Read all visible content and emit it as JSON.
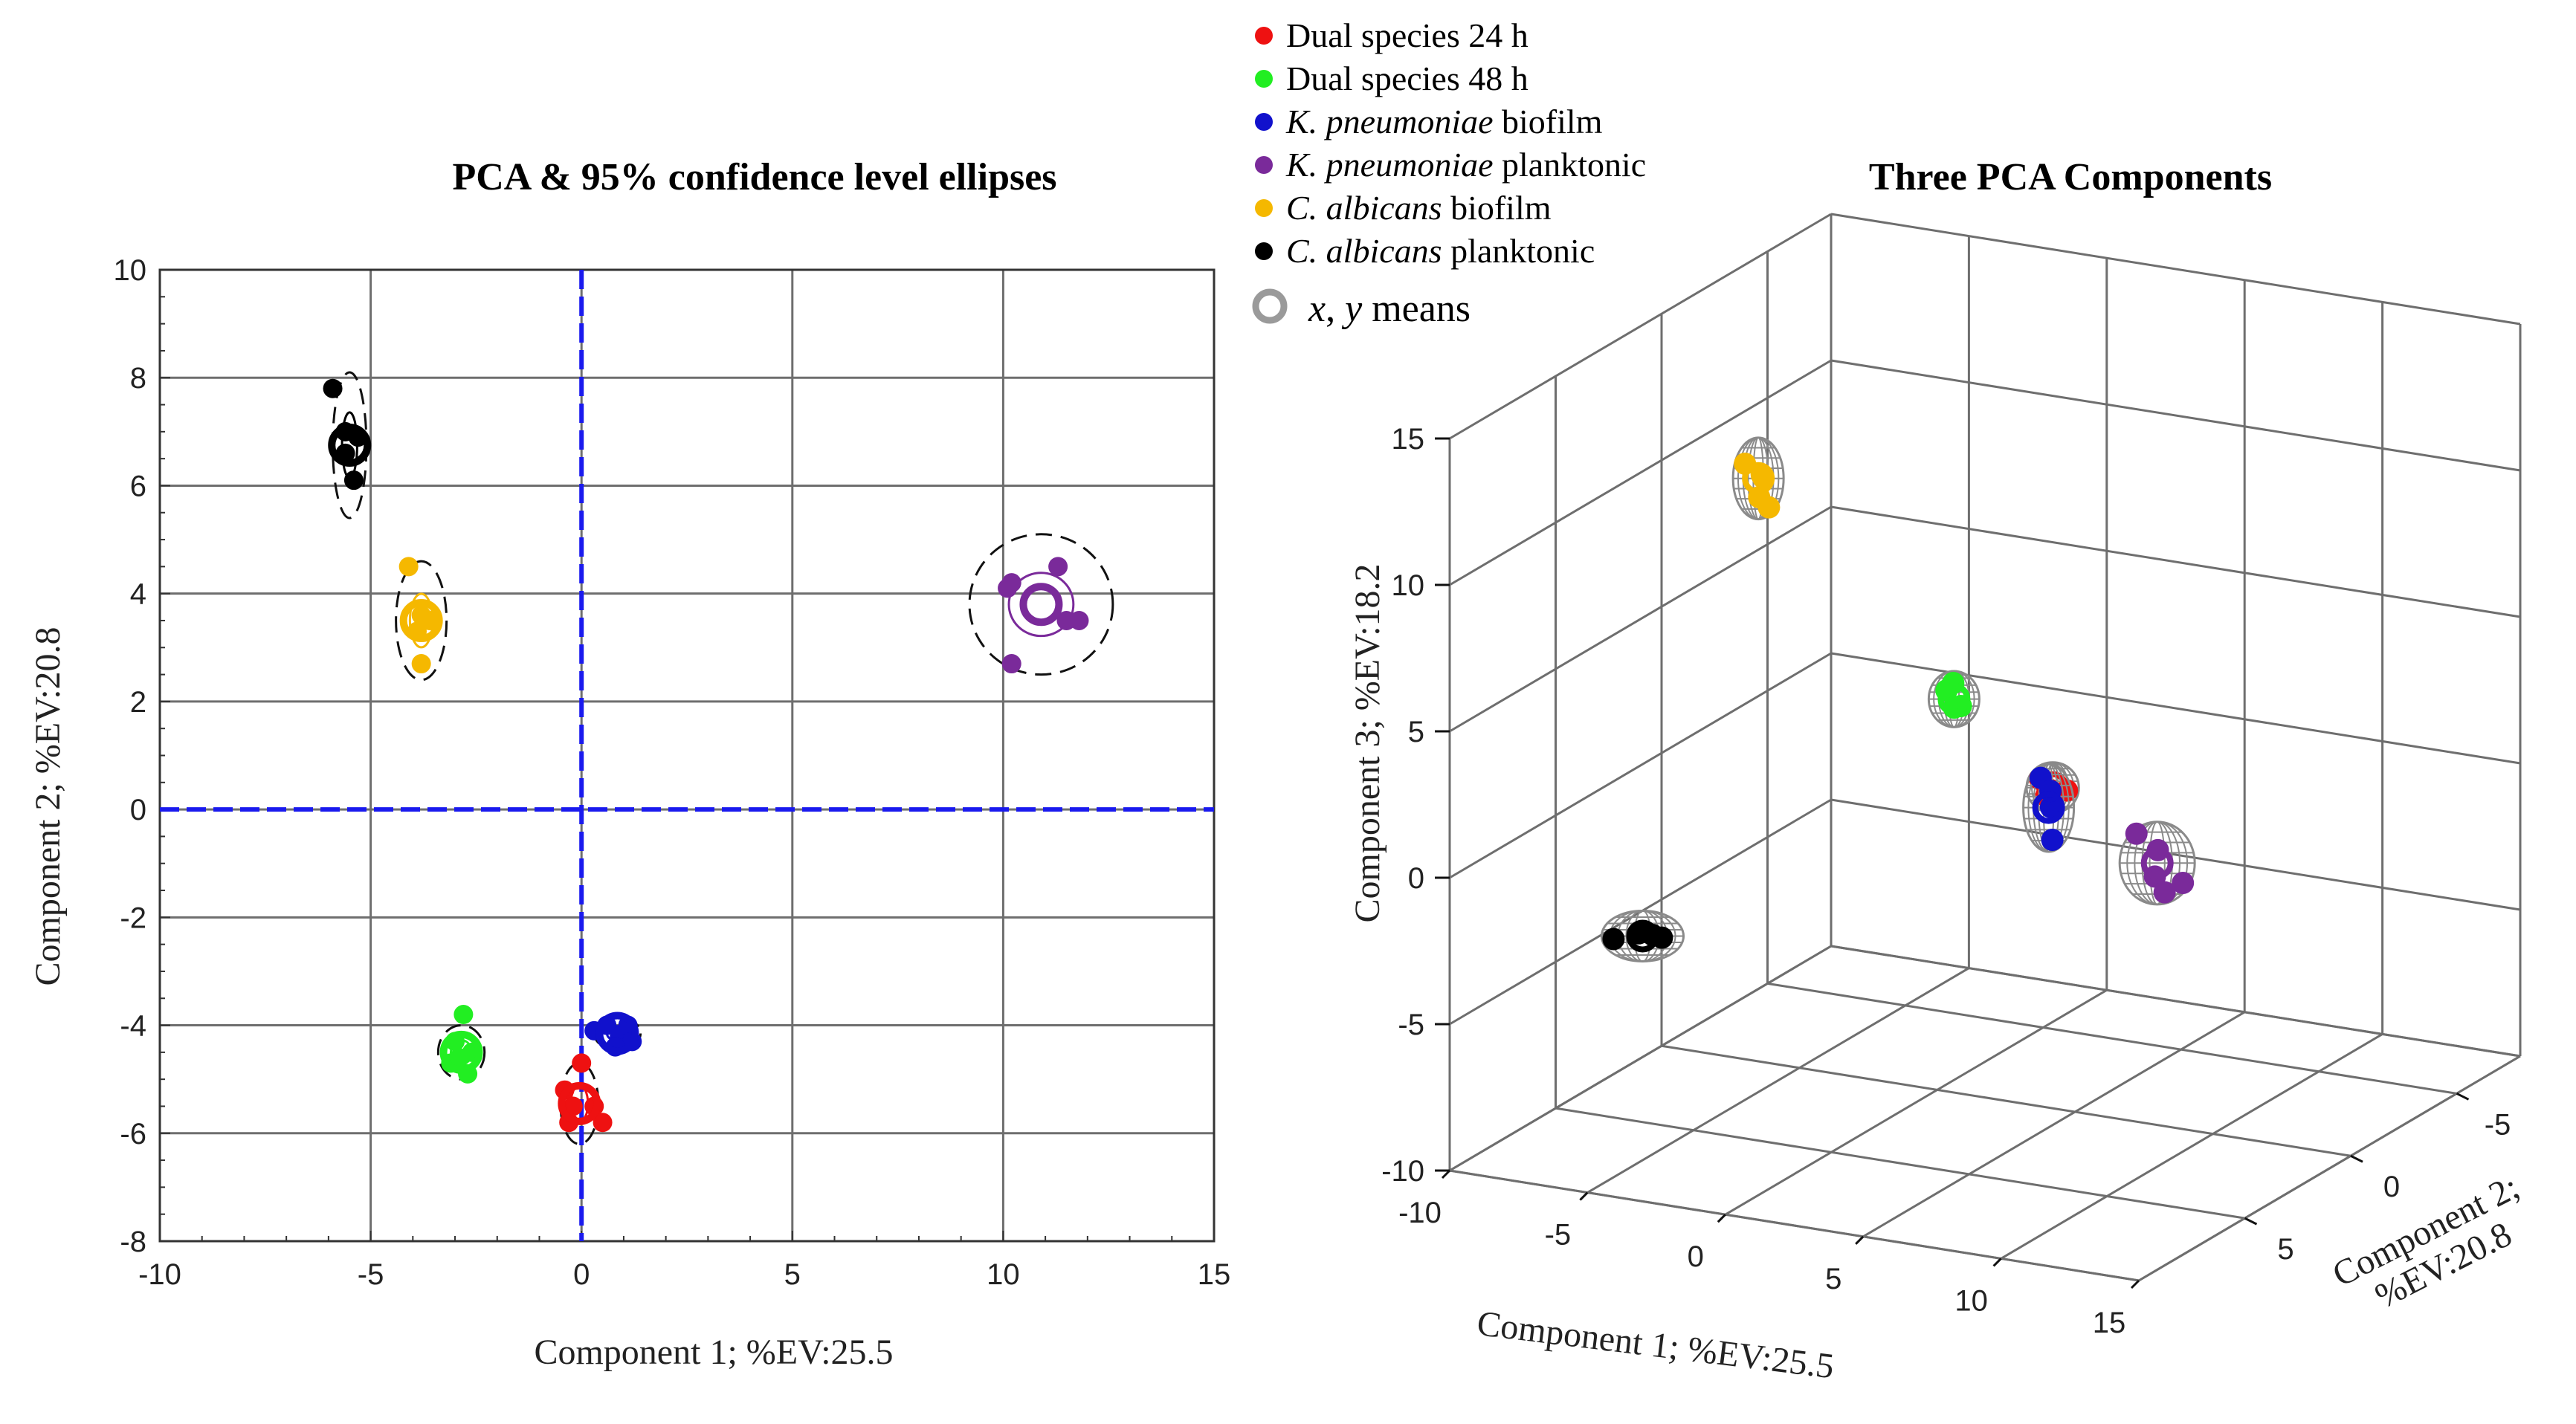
{
  "chart_data": [
    {
      "type": "scatter",
      "title": "PCA & 95% confidence level ellipses",
      "xlabel": "Component 1; %EV:25.5",
      "ylabel": "Component 2; %EV:20.8",
      "xlim": [
        -10,
        15
      ],
      "ylim": [
        -8,
        10
      ],
      "xticks": [
        -10,
        -5,
        0,
        5,
        10,
        15
      ],
      "yticks": [
        -8,
        -6,
        -4,
        -2,
        0,
        2,
        4,
        6,
        8,
        10
      ],
      "grid": true,
      "reference_lines": {
        "x": 0,
        "y": 0,
        "color": "#1a1aee",
        "style": "dashed"
      },
      "series": [
        {
          "name": "Dual species 24 h",
          "color": "#ee1111",
          "points": [
            [
              -0.4,
              -5.2
            ],
            [
              -0.2,
              -5.5
            ],
            [
              0.0,
              -4.7
            ],
            [
              0.3,
              -5.5
            ],
            [
              0.5,
              -5.8
            ],
            [
              -0.3,
              -5.8
            ]
          ],
          "mean": [
            -0.05,
            -5.45
          ],
          "ellipse_r": [
            0.45,
            0.75
          ]
        },
        {
          "name": "Dual species 48 h",
          "color": "#22ee22",
          "points": [
            [
              -2.8,
              -3.8
            ],
            [
              -3.0,
              -4.3
            ],
            [
              -2.6,
              -4.5
            ],
            [
              -3.1,
              -4.7
            ],
            [
              -2.7,
              -4.9
            ],
            [
              -2.9,
              -4.6
            ]
          ],
          "mean": [
            -2.85,
            -4.5
          ],
          "ellipse_r": [
            0.55,
            0.5
          ]
        },
        {
          "name": "K. pneumoniae biofilm",
          "color": "#1111cc",
          "points": [
            [
              0.3,
              -4.1
            ],
            [
              0.6,
              -4.0
            ],
            [
              0.9,
              -4.2
            ],
            [
              1.1,
              -4.0
            ],
            [
              1.2,
              -4.3
            ],
            [
              0.8,
              -4.4
            ]
          ],
          "mean": [
            0.85,
            -4.15
          ],
          "ellipse_r": [
            0.55,
            0.3
          ]
        },
        {
          "name": "K. pneumoniae planktonic",
          "color": "#7a2a9a",
          "points": [
            [
              10.1,
              4.1
            ],
            [
              10.2,
              4.2
            ],
            [
              11.3,
              4.5
            ],
            [
              11.5,
              3.5
            ],
            [
              11.8,
              3.5
            ],
            [
              10.2,
              2.7
            ]
          ],
          "mean": [
            10.9,
            3.8
          ],
          "ellipse_r": [
            1.7,
            1.3
          ]
        },
        {
          "name": "C. albicans biofilm",
          "color": "#f5b800",
          "points": [
            [
              -4.1,
              4.5
            ],
            [
              -3.8,
              3.6
            ],
            [
              -3.6,
              3.5
            ],
            [
              -3.9,
              3.3
            ],
            [
              -3.8,
              2.7
            ]
          ],
          "mean": [
            -3.8,
            3.5
          ],
          "ellipse_r": [
            0.6,
            1.1
          ]
        },
        {
          "name": "C. albicans planktonic",
          "color": "#000000",
          "points": [
            [
              -5.9,
              7.8
            ],
            [
              -5.6,
              7.0
            ],
            [
              -5.3,
              6.9
            ],
            [
              -5.6,
              6.6
            ],
            [
              -5.4,
              6.1
            ]
          ],
          "mean": [
            -5.5,
            6.75
          ],
          "ellipse_r": [
            0.4,
            1.35
          ]
        }
      ]
    },
    {
      "type": "scatter3d",
      "title": "Three PCA Components",
      "xlabel": "Component 1; %EV:25.5",
      "ylabel": "Component 2; %EV:20.8",
      "zlabel": "Component 3; %EV:18.2",
      "xlim": [
        -10,
        15
      ],
      "ylim": [
        -8,
        10
      ],
      "zlim": [
        -10,
        15
      ],
      "xticks": [
        -10,
        -5,
        0,
        5,
        10,
        15
      ],
      "yticks": [
        -5,
        0,
        5
      ],
      "zticks": [
        -10,
        -5,
        0,
        5,
        10,
        15
      ],
      "series": [
        {
          "name": "Dual species 24 h",
          "color": "#ee1111",
          "points": [
            [
              -0.5,
              -5.5,
              -1.8
            ],
            [
              0.0,
              -5.3,
              -2.0
            ],
            [
              0.4,
              -5.6,
              -2.1
            ],
            [
              -0.2,
              -5.4,
              -2.3
            ]
          ],
          "mean": [
            0.0,
            -5.45,
            -2.0
          ]
        },
        {
          "name": "Dual species 48 h",
          "color": "#22ee22",
          "points": [
            [
              -3.2,
              -4.6,
              1.2
            ],
            [
              -2.8,
              -4.4,
              1.6
            ],
            [
              -2.6,
              -4.5,
              0.8
            ],
            [
              -3.0,
              -4.7,
              0.6
            ]
          ],
          "mean": [
            -2.85,
            -4.5,
            1.0
          ]
        },
        {
          "name": "K. pneumoniae biofilm",
          "color": "#1111cc",
          "points": [
            [
              0.6,
              -4.1,
              -1.0
            ],
            [
              0.9,
              -4.2,
              -2.0
            ],
            [
              1.1,
              -4.0,
              -3.0
            ],
            [
              0.8,
              -4.3,
              -1.5
            ]
          ],
          "mean": [
            0.85,
            -4.15,
            -2.0
          ]
        },
        {
          "name": "K. pneumoniae planktonic",
          "color": "#7a2a9a",
          "points": [
            [
              10.3,
              4.0,
              2.0
            ],
            [
              11.2,
              4.3,
              0.8
            ],
            [
              11.6,
              3.5,
              0.3
            ],
            [
              10.4,
              2.8,
              -0.5
            ],
            [
              11.0,
              3.9,
              1.5
            ]
          ],
          "mean": [
            10.9,
            3.8,
            1.0
          ]
        },
        {
          "name": "C. albicans biofilm",
          "color": "#f5b800",
          "points": [
            [
              -3.9,
              4.0,
              12.5
            ],
            [
              -3.7,
              3.4,
              11.8
            ],
            [
              -3.8,
              3.0,
              10.6
            ],
            [
              -3.6,
              3.6,
              12.0
            ],
            [
              -4.0,
              3.2,
              11.0
            ]
          ],
          "mean": [
            -3.8,
            3.5,
            11.8
          ]
        },
        {
          "name": "C. albicans planktonic",
          "color": "#000000",
          "points": [
            [
              -5.9,
              7.6,
              -2.5
            ],
            [
              -5.4,
              6.4,
              -2.8
            ],
            [
              -5.6,
              6.8,
              -2.6
            ],
            [
              -5.3,
              6.1,
              -3.0
            ]
          ],
          "mean": [
            -5.5,
            6.75,
            -2.7
          ]
        }
      ]
    }
  ],
  "legend": {
    "entries": [
      {
        "color": "#ee1111",
        "italic": "",
        "text": "Dual species 24 h"
      },
      {
        "color": "#22ee22",
        "italic": "",
        "text": "Dual species 48 h"
      },
      {
        "color": "#1111cc",
        "italic": "K. pneumoniae",
        "text": " biofilm"
      },
      {
        "color": "#7a2a9a",
        "italic": "K. pneumoniae",
        "text": " planktonic"
      },
      {
        "color": "#f5b800",
        "italic": "C. albicans",
        "text": " biofilm"
      },
      {
        "color": "#000000",
        "italic": "C. albicans",
        "text": " planktonic"
      }
    ],
    "means_label": {
      "x": "x",
      "sep": ", ",
      "y": "y",
      "text": " means"
    }
  }
}
